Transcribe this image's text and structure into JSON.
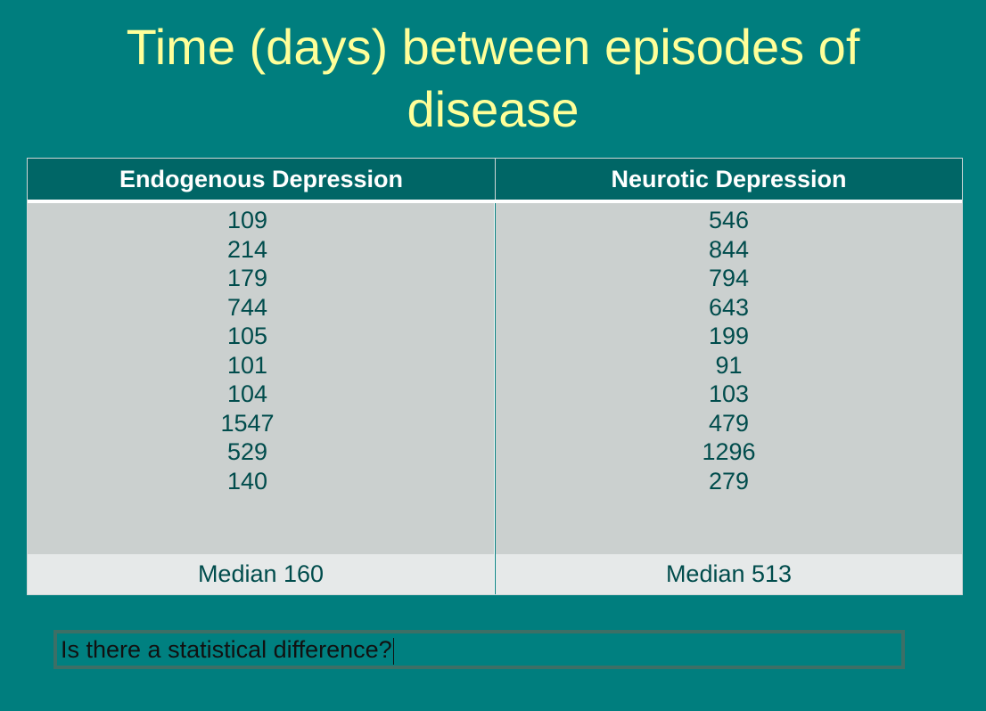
{
  "title": {
    "line1": "Time (days) between episodes of",
    "line2": "disease"
  },
  "table": {
    "columns": [
      {
        "header": "Endogenous Depression",
        "values": [
          "109",
          "214",
          "179",
          "744",
          "105",
          "101",
          "104",
          "1547",
          "529",
          "140"
        ],
        "median": "Median 160"
      },
      {
        "header": "Neurotic Depression",
        "values": [
          "546",
          "844",
          "794",
          "643",
          "199",
          "91",
          "103",
          "479",
          "1296",
          "279"
        ],
        "median": "Median 513"
      }
    ]
  },
  "question": {
    "text": "Is there a statistical difference?"
  },
  "colors": {
    "background": "#007e7e",
    "title": "#ffff99",
    "header_bg": "#006666",
    "data_bg": "#cbd0cf",
    "median_bg": "#e6e9e9",
    "value_text": "#004c4c"
  }
}
